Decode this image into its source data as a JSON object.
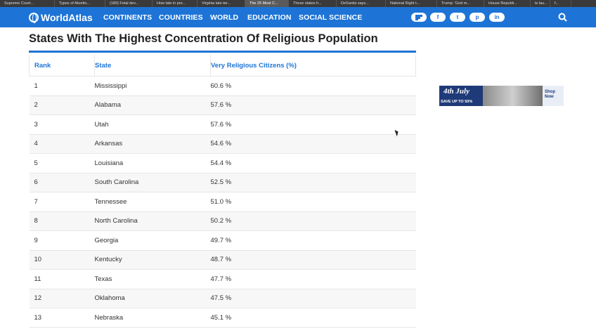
{
  "browser_tabs": [
    "Supreme Court...",
    "Types of Abortio...",
    "(180) Fetal dev...",
    "How late in pre...",
    "Virginia late-ter...",
    "The 25 Most C...",
    "These states h...",
    "DeSantis says...",
    "National Right t...",
    "Trump: 'God m...",
    "House Republi...",
    "ts lau...",
    "f..."
  ],
  "active_tab_index": 5,
  "navbar": {
    "logo": "WorldAtlas",
    "items": [
      "CONTINENTS",
      "COUNTRIES",
      "WORLD",
      "EDUCATION",
      "SOCIAL SCIENCE"
    ],
    "social": [
      "f",
      "t",
      "p",
      "in"
    ],
    "social_icons": [
      "flipboard-icon",
      "facebook-icon",
      "twitter-icon",
      "pinterest-icon",
      "linkedin-icon"
    ],
    "accent_color": "#1d74d6"
  },
  "article": {
    "title": "States With The Highest Concentration Of Religious Population"
  },
  "table": {
    "headers": [
      "Rank",
      "State",
      "Very Religious Citizens (%)"
    ],
    "rows": [
      [
        "1",
        "Mississippi",
        "60.6 %"
      ],
      [
        "2",
        "Alabama",
        "57.6 %"
      ],
      [
        "3",
        "Utah",
        "57.6 %"
      ],
      [
        "4",
        "Arkansas",
        "54.6 %"
      ],
      [
        "5",
        "Louisiana",
        "54.4 %"
      ],
      [
        "6",
        "South Carolina",
        "52.5 %"
      ],
      [
        "7",
        "Tennessee",
        "51.0 %"
      ],
      [
        "8",
        "North Carolina",
        "50.2 %"
      ],
      [
        "9",
        "Georgia",
        "49.7 %"
      ],
      [
        "10",
        "Kentucky",
        "48.7 %"
      ],
      [
        "11",
        "Texas",
        "47.7 %"
      ],
      [
        "12",
        "Oklahoma",
        "47.5 %"
      ],
      [
        "13",
        "Nebraska",
        "45.1 %"
      ]
    ]
  },
  "ad": {
    "headline": "4th July",
    "subline": "SAVE UP TO 50%",
    "cta": "Shop Now"
  }
}
